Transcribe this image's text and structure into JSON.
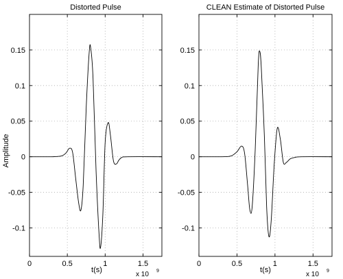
{
  "chart_data": [
    {
      "type": "line",
      "title": "Distorted Pulse",
      "xlabel": "t(s)",
      "ylabel": "Amplitude",
      "x_multiplier": "x 10",
      "x_multiplier_exp": "9",
      "xlim": [
        0,
        1.75
      ],
      "ylim": [
        -0.14,
        0.2
      ],
      "xticks": [
        0,
        0.5,
        1,
        1.5
      ],
      "xtick_labels": [
        "0",
        "0.5",
        "1",
        "1.5"
      ],
      "yticks": [
        -0.1,
        -0.05,
        0,
        0.05,
        0.1,
        0.15
      ],
      "ytick_labels": [
        "-0.1",
        "-0.05",
        "0",
        "0.05",
        "0.1",
        "0.15"
      ],
      "grid": true,
      "series": [
        {
          "x": [
            0,
            0.3,
            0.42,
            0.48,
            0.53,
            0.57,
            0.61,
            0.65,
            0.68,
            0.71,
            0.75,
            0.79,
            0.81,
            0.84,
            0.88,
            0.92,
            0.94,
            0.97,
            1.0,
            1.04,
            1.07,
            1.11,
            1.15,
            1.18,
            1.22,
            1.3,
            1.75
          ],
          "y": [
            0,
            0,
            0.001,
            0.005,
            0.012,
            0.006,
            -0.03,
            -0.065,
            -0.075,
            -0.04,
            0.07,
            0.148,
            0.152,
            0.11,
            -0.02,
            -0.11,
            -0.127,
            -0.08,
            0.02,
            0.048,
            0.03,
            -0.006,
            -0.01,
            -0.005,
            -0.001,
            0,
            0
          ]
        }
      ]
    },
    {
      "type": "line",
      "title": "CLEAN Estimate of Distorted Pulse",
      "xlabel": "t(s)",
      "ylabel": "",
      "x_multiplier": "x 10",
      "x_multiplier_exp": "9",
      "xlim": [
        0,
        1.75
      ],
      "ylim": [
        -0.14,
        0.2
      ],
      "xticks": [
        0,
        0.5,
        1,
        1.5
      ],
      "xtick_labels": [
        "0",
        "0.5",
        "1",
        "1.5"
      ],
      "yticks": [
        -0.1,
        -0.05,
        0,
        0.05,
        0.1,
        0.15
      ],
      "ytick_labels": [
        "-0.1",
        "-0.05",
        "0",
        "0.05",
        "0.1",
        "0.15"
      ],
      "grid": true,
      "series": [
        {
          "x": [
            0,
            0.3,
            0.42,
            0.5,
            0.56,
            0.6,
            0.64,
            0.67,
            0.7,
            0.74,
            0.78,
            0.8,
            0.82,
            0.86,
            0.89,
            0.92,
            0.95,
            0.99,
            1.03,
            1.07,
            1.11,
            1.15,
            1.2,
            1.26,
            1.35,
            1.75
          ],
          "y": [
            0,
            0,
            0.001,
            0.007,
            0.015,
            0.005,
            -0.04,
            -0.075,
            -0.07,
            0.01,
            0.13,
            0.148,
            0.125,
            0.03,
            -0.07,
            -0.112,
            -0.09,
            -0.01,
            0.04,
            0.025,
            -0.008,
            -0.008,
            -0.003,
            -0.001,
            0,
            0
          ]
        }
      ]
    }
  ]
}
